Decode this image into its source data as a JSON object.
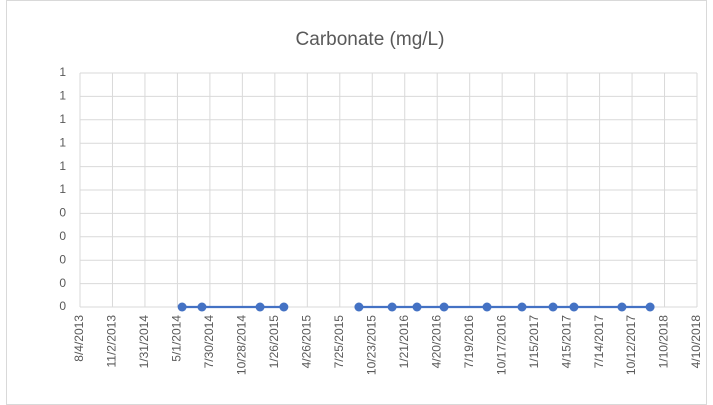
{
  "chart_data": {
    "type": "line",
    "title": "Carbonate (mg/L)",
    "x": [
      "2014-05-14",
      "2014-07-08",
      "2014-12-16",
      "2015-02-20",
      null,
      "2015-09-16",
      "2015-12-17",
      "2016-02-24",
      "2016-05-09",
      "2016-09-05",
      "2016-12-11",
      "2017-03-07",
      "2017-05-04",
      "2017-09-14",
      "2017-12-01"
    ],
    "series": [
      {
        "color": "#4472c4",
        "values": [
          0,
          0,
          0,
          0,
          null,
          0,
          0,
          0,
          0,
          0,
          0,
          0,
          0,
          0,
          0
        ]
      }
    ],
    "xlim": [
      "2013-08-04",
      "2018-04-10"
    ],
    "xticks": [
      {
        "value": "2013-08-04",
        "label": "8/4/2013"
      },
      {
        "value": "2013-11-02",
        "label": "11/2/2013"
      },
      {
        "value": "2014-01-31",
        "label": "1/31/2014"
      },
      {
        "value": "2014-05-01",
        "label": "5/1/2014"
      },
      {
        "value": "2014-07-30",
        "label": "7/30/2014"
      },
      {
        "value": "2014-10-28",
        "label": "10/28/2014"
      },
      {
        "value": "2015-01-26",
        "label": "1/26/2015"
      },
      {
        "value": "2015-04-26",
        "label": "4/26/2015"
      },
      {
        "value": "2015-07-25",
        "label": "7/25/2015"
      },
      {
        "value": "2015-10-23",
        "label": "10/23/2015"
      },
      {
        "value": "2016-01-21",
        "label": "1/21/2016"
      },
      {
        "value": "2016-04-20",
        "label": "4/20/2016"
      },
      {
        "value": "2016-07-19",
        "label": "7/19/2016"
      },
      {
        "value": "2016-10-17",
        "label": "10/17/2016"
      },
      {
        "value": "2017-01-15",
        "label": "1/15/2017"
      },
      {
        "value": "2017-04-15",
        "label": "4/15/2017"
      },
      {
        "value": "2017-07-14",
        "label": "7/14/2017"
      },
      {
        "value": "2017-10-12",
        "label": "10/12/2017"
      },
      {
        "value": "2018-01-10",
        "label": "1/10/2018"
      },
      {
        "value": "2018-04-10",
        "label": "4/10/2018"
      }
    ],
    "ylim": [
      0,
      1
    ],
    "yticks": [
      {
        "value": 0,
        "label": "0"
      },
      {
        "value": 0.1,
        "label": "0"
      },
      {
        "value": 0.2,
        "label": "0"
      },
      {
        "value": 0.3,
        "label": "0"
      },
      {
        "value": 0.4,
        "label": "0"
      },
      {
        "value": 0.5,
        "label": "1"
      },
      {
        "value": 0.6,
        "label": "1"
      },
      {
        "value": 0.7,
        "label": "1"
      },
      {
        "value": 0.8,
        "label": "1"
      },
      {
        "value": 0.9,
        "label": "1"
      },
      {
        "value": 1,
        "label": "1"
      }
    ],
    "grid": true
  }
}
